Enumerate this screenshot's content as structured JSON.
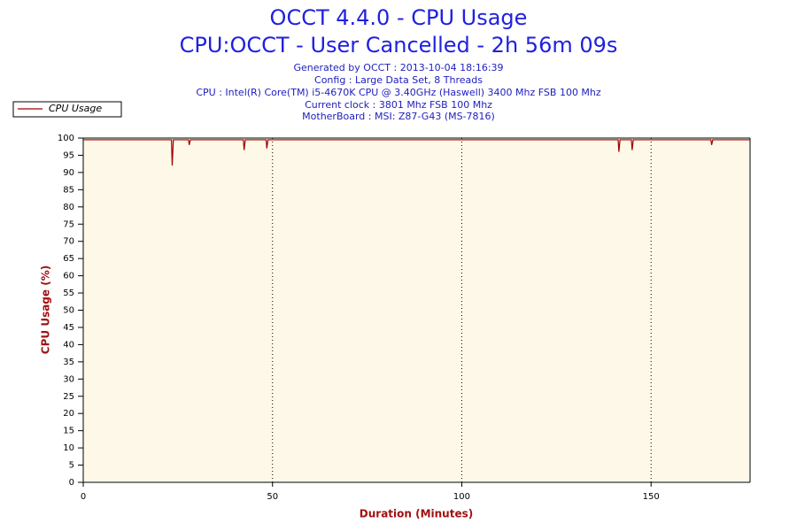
{
  "chart_data": {
    "type": "line",
    "title": "OCCT 4.4.0 - CPU Usage",
    "subtitle": "CPU:OCCT - User Cancelled - 2h 56m 09s",
    "info": [
      "Generated by OCCT : 2013-10-04 18:16:39",
      "Config : Large Data Set, 8 Threads",
      "CPU : Intel(R) Core(TM) i5-4670K CPU @ 3.40GHz (Haswell) 3400 Mhz FSB 100 Mhz",
      "Current clock : 3801 Mhz FSB 100 Mhz",
      "MotherBoard : MSI: Z87-G43 (MS-7816)"
    ],
    "x_label": "Duration (Minutes)",
    "y_label": "CPU Usage (%)",
    "x": [
      0,
      5,
      10,
      15,
      20,
      23.3,
      23.5,
      23.8,
      27.8,
      28,
      28.3,
      35,
      42.3,
      42.5,
      42.8,
      48.3,
      48.5,
      48.8,
      55,
      65,
      75,
      85,
      95,
      105,
      115,
      125,
      135,
      141.3,
      141.5,
      141.8,
      144.8,
      145,
      145.3,
      155,
      165.8,
      166,
      166.3,
      176
    ],
    "series": [
      {
        "name": "CPU Usage",
        "color": "#a00000",
        "values": [
          99.5,
          99.5,
          99.5,
          99.5,
          99.5,
          99.5,
          92,
          99.5,
          99.5,
          98,
          99.5,
          99.5,
          99.5,
          96.5,
          99.5,
          99.5,
          97,
          99.5,
          99.5,
          99.5,
          99.5,
          99.5,
          99.5,
          99.5,
          99.5,
          99.5,
          99.5,
          99.5,
          96,
          99.5,
          99.5,
          96.5,
          99.5,
          99.5,
          99.5,
          98,
          99.5,
          99.5
        ]
      }
    ],
    "xlim": [
      0,
      176.15
    ],
    "xticks": [
      0,
      50,
      100,
      150
    ],
    "ylim": [
      0,
      100
    ],
    "yticks": [
      0,
      5,
      10,
      15,
      20,
      25,
      30,
      35,
      40,
      45,
      50,
      55,
      60,
      65,
      70,
      75,
      80,
      85,
      90,
      95,
      100
    ],
    "grid": "x",
    "legend": "top-left"
  }
}
